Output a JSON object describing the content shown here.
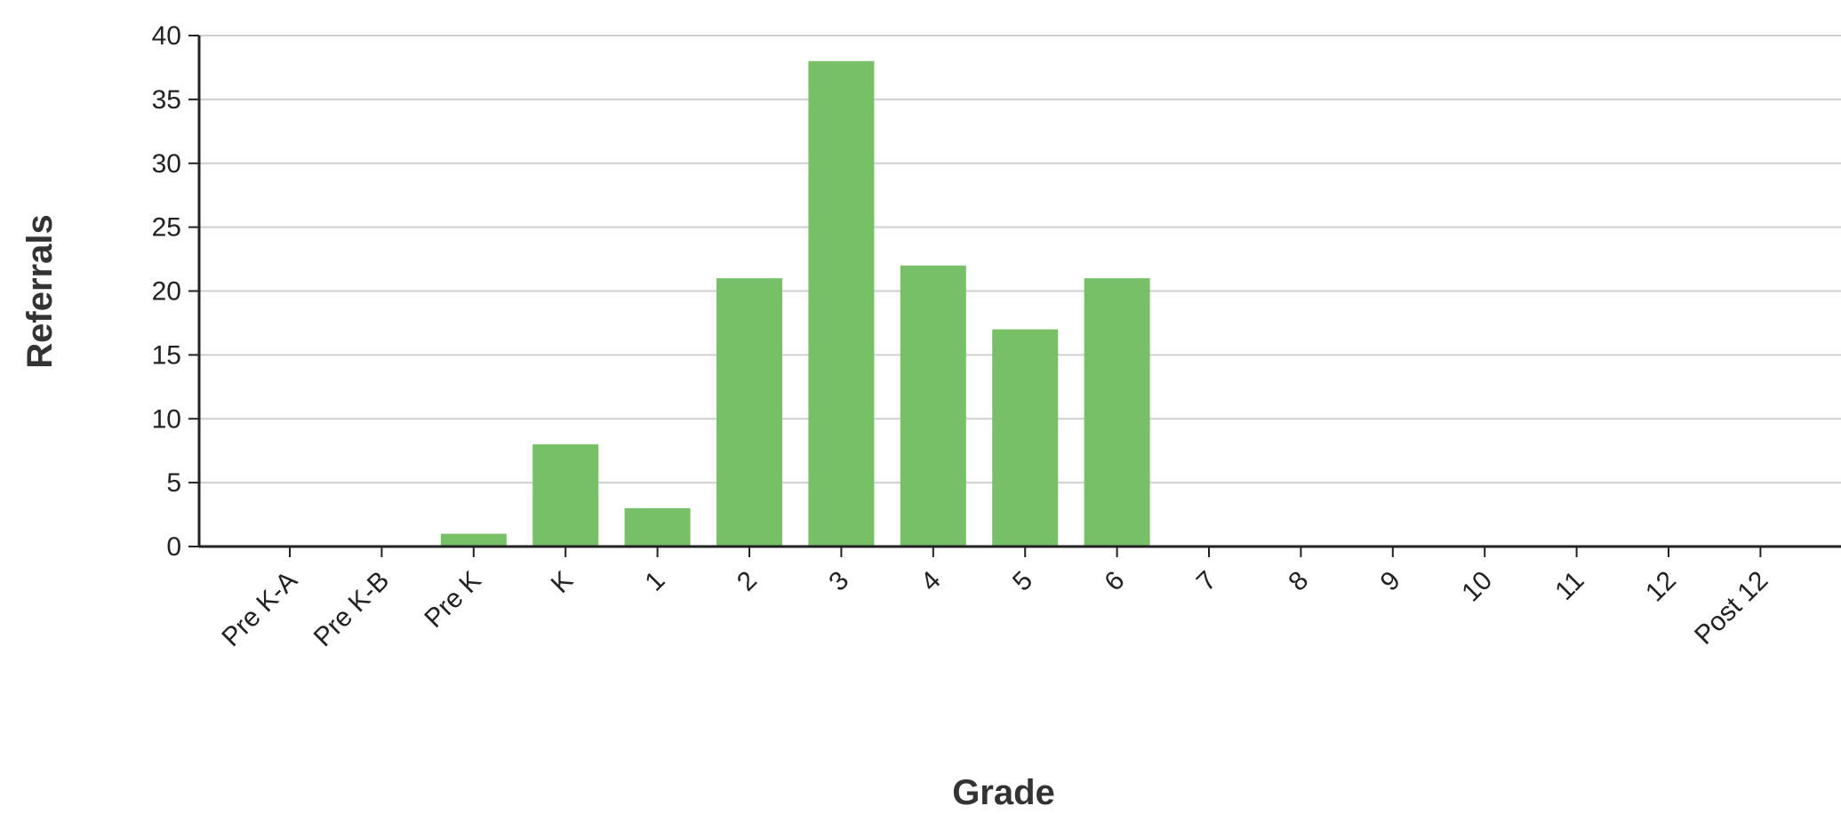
{
  "chart_data": {
    "type": "bar",
    "title": "",
    "xlabel": "Grade",
    "ylabel": "Referrals",
    "categories": [
      "Pre K-A",
      "Pre K-B",
      "Pre K",
      "K",
      "1",
      "2",
      "3",
      "4",
      "5",
      "6",
      "7",
      "8",
      "9",
      "10",
      "11",
      "12",
      "Post 12"
    ],
    "values": [
      0,
      0,
      1,
      8,
      3,
      21,
      38,
      22,
      17,
      21,
      0,
      0,
      0,
      0,
      0,
      0,
      0
    ],
    "ylim": [
      0,
      40
    ],
    "yticks": [
      "0",
      "5",
      "10",
      "15",
      "20",
      "25",
      "30",
      "35",
      "40"
    ],
    "grid": true,
    "legend": "none",
    "colors": {
      "bar": "#78c068",
      "grid": "#cfcfcf",
      "axis": "#222222"
    }
  }
}
